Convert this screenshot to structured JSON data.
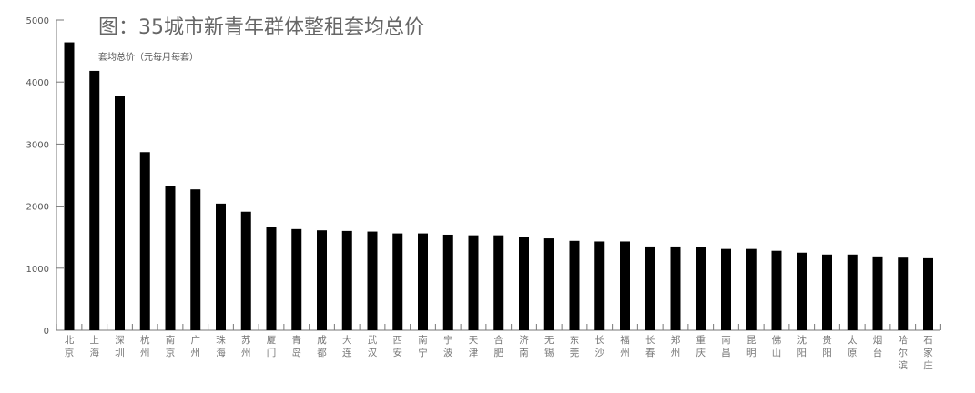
{
  "chart_data": {
    "type": "bar",
    "title": "图：35城市新青年群体整租套均总价",
    "ylabel": "套均总价（元每月每套）",
    "xlabel": "",
    "ylim": [
      0,
      5000
    ],
    "yticks": [
      0,
      1000,
      2000,
      3000,
      4000,
      5000
    ],
    "grid": false,
    "bar_color": "#000000",
    "categories": [
      "北京",
      "上海",
      "深圳",
      "杭州",
      "南京",
      "广州",
      "珠海",
      "苏州",
      "厦门",
      "青岛",
      "成都",
      "大连",
      "武汉",
      "西安",
      "南宁",
      "宁波",
      "天津",
      "合肥",
      "济南",
      "无锡",
      "东莞",
      "长沙",
      "福州",
      "长春",
      "郑州",
      "重庆",
      "南昌",
      "昆明",
      "佛山",
      "沈阳",
      "贵阳",
      "太原",
      "烟台",
      "哈尔滨",
      "石家庄"
    ],
    "values": [
      4640,
      4180,
      3780,
      2870,
      2320,
      2270,
      2040,
      1910,
      1660,
      1630,
      1610,
      1600,
      1590,
      1560,
      1560,
      1540,
      1530,
      1530,
      1500,
      1480,
      1440,
      1430,
      1430,
      1350,
      1350,
      1340,
      1310,
      1310,
      1280,
      1250,
      1220,
      1220,
      1190,
      1170,
      1160
    ]
  }
}
